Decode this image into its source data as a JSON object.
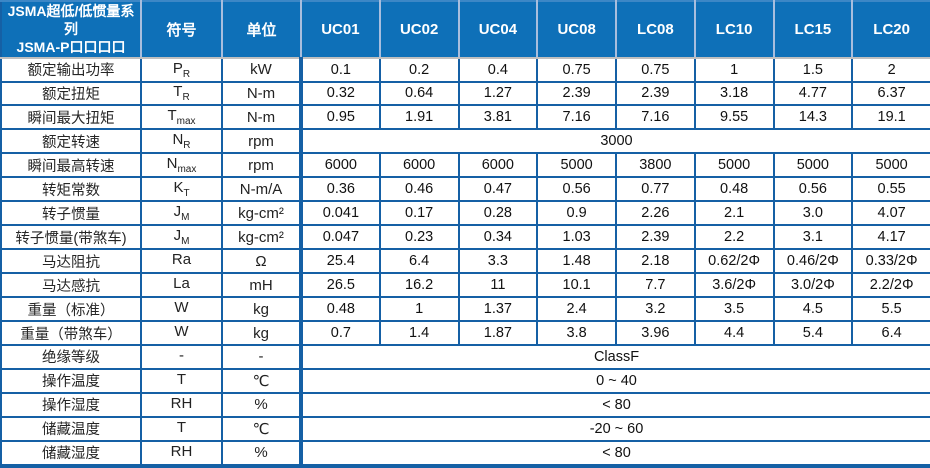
{
  "colors": {
    "header_bg": "#0E70B8",
    "header_text": "#FFFFFF",
    "header_separator": "#A8BEDE",
    "grid_border": "#1560A5",
    "body_bg": "#FFFFFF",
    "value_text": "#111111"
  },
  "table": {
    "title_line1": "JSMA超低/低惯量系列",
    "title_line2": "JSMA-P口口口口",
    "symbol_header": "符号",
    "unit_header": "单位",
    "model_columns": [
      "UC01",
      "UC02",
      "UC04",
      "UC08",
      "LC08",
      "LC10",
      "LC15",
      "LC20"
    ],
    "rows": [
      {
        "label": "额定输出功率",
        "symbol": {
          "base": "P",
          "sub": "R"
        },
        "unit": "kW",
        "values": [
          "0.1",
          "0.2",
          "0.4",
          "0.75",
          "0.75",
          "1",
          "1.5",
          "2"
        ]
      },
      {
        "label": "额定扭矩",
        "symbol": {
          "base": "T",
          "sub": "R"
        },
        "unit": "N-m",
        "values": [
          "0.32",
          "0.64",
          "1.27",
          "2.39",
          "2.39",
          "3.18",
          "4.77",
          "6.37"
        ]
      },
      {
        "label": "瞬间最大扭矩",
        "symbol": {
          "base": "T",
          "sub": "max"
        },
        "unit": "N-m",
        "values": [
          "0.95",
          "1.91",
          "3.81",
          "7.16",
          "7.16",
          "9.55",
          "14.3",
          "19.1"
        ]
      },
      {
        "label": "额定转速",
        "symbol": {
          "base": "N",
          "sub": "R"
        },
        "unit": "rpm",
        "merged_value": "3000"
      },
      {
        "label": "瞬间最高转速",
        "symbol": {
          "base": "N",
          "sub": "max"
        },
        "unit": "rpm",
        "values": [
          "6000",
          "6000",
          "6000",
          "5000",
          "3800",
          "5000",
          "5000",
          "5000"
        ]
      },
      {
        "label": "转矩常数",
        "symbol": {
          "base": "K",
          "sub": "T"
        },
        "unit": "N-m/A",
        "values": [
          "0.36",
          "0.46",
          "0.47",
          "0.56",
          "0.77",
          "0.48",
          "0.56",
          "0.55"
        ]
      },
      {
        "label": "转子惯量",
        "symbol": {
          "base": "J",
          "sub": "M"
        },
        "unit": "kg-cm²",
        "values": [
          "0.041",
          "0.17",
          "0.28",
          "0.9",
          "2.26",
          "2.1",
          "3.0",
          "4.07"
        ]
      },
      {
        "label": "转子惯量(带煞车)",
        "symbol": {
          "base": "J",
          "sub": "M"
        },
        "unit": "kg-cm²",
        "values": [
          "0.047",
          "0.23",
          "0.34",
          "1.03",
          "2.39",
          "2.2",
          "3.1",
          "4.17"
        ]
      },
      {
        "label": "马达阻抗",
        "symbol": {
          "base": "Ra",
          "sub": ""
        },
        "unit": "Ω",
        "values": [
          "25.4",
          "6.4",
          "3.3",
          "1.48",
          "2.18",
          "0.62/2Φ",
          "0.46/2Φ",
          "0.33/2Φ"
        ]
      },
      {
        "label": "马达感抗",
        "symbol": {
          "base": "La",
          "sub": ""
        },
        "unit": "mH",
        "values": [
          "26.5",
          "16.2",
          "11",
          "10.1",
          "7.7",
          "3.6/2Φ",
          "3.0/2Φ",
          "2.2/2Φ"
        ]
      },
      {
        "label": "重量（标准）",
        "symbol": {
          "base": "W",
          "sub": ""
        },
        "unit": "kg",
        "values": [
          "0.48",
          "1",
          "1.37",
          "2.4",
          "3.2",
          "3.5",
          "4.5",
          "5.5"
        ]
      },
      {
        "label": "重量（带煞车）",
        "symbol": {
          "base": "W",
          "sub": ""
        },
        "unit": "kg",
        "values": [
          "0.7",
          "1.4",
          "1.87",
          "3.8",
          "3.96",
          "4.4",
          "5.4",
          "6.4"
        ]
      },
      {
        "label": "绝缘等级",
        "symbol": {
          "base": "-",
          "sub": ""
        },
        "unit": "-",
        "merged_value": "ClassF"
      },
      {
        "label": "操作温度",
        "symbol": {
          "base": "T",
          "sub": ""
        },
        "unit": "℃",
        "merged_value": "0 ~ 40"
      },
      {
        "label": "操作湿度",
        "symbol": {
          "base": "RH",
          "sub": ""
        },
        "unit": "%",
        "merged_value": "< 80"
      },
      {
        "label": "储藏温度",
        "symbol": {
          "base": "T",
          "sub": ""
        },
        "unit": "℃",
        "merged_value": "-20 ~ 60"
      },
      {
        "label": "储藏湿度",
        "symbol": {
          "base": "RH",
          "sub": ""
        },
        "unit": "%",
        "merged_value": "< 80"
      }
    ]
  }
}
